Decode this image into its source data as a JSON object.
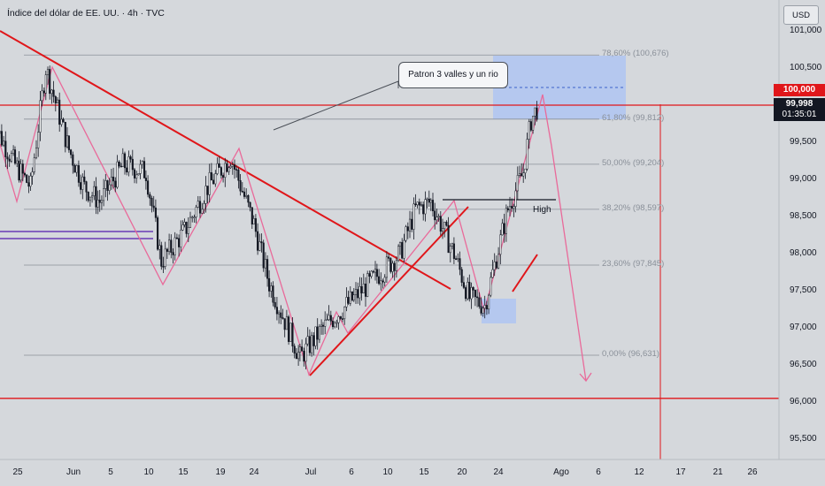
{
  "header": {
    "title": "Índice del dólar de EE. UU. · 4h · TVC",
    "currency_button": "USD"
  },
  "colors": {
    "background": "#d5d8dc",
    "trendline": "#e0161a",
    "zigzag": "#e96a9a",
    "candle": "#131722",
    "channel": "#6a3ab5",
    "fib_box": "#a9c3f5",
    "price_tag_red": "#e0161a",
    "price_tag_dark": "#131722"
  },
  "price_axis": {
    "labels": [
      "101,000",
      "100,500",
      "100,000",
      "99,998",
      "01:35:01",
      "99,500",
      "99,000",
      "98,500",
      "98,000",
      "97,500",
      "97,000",
      "96,500",
      "96,000",
      "95,500"
    ],
    "tick_values": [
      101.0,
      100.5,
      99.5,
      99.0,
      98.5,
      98.0,
      97.5,
      97.0,
      96.5,
      96.0,
      95.5
    ],
    "tick_labels": [
      "101,000",
      "100,500",
      "99,500",
      "99,000",
      "98,500",
      "98,000",
      "97,500",
      "97,000",
      "96,500",
      "96,000",
      "95,500"
    ],
    "level_tag": "100,000",
    "current_price": "99,998",
    "countdown": "01:35:01"
  },
  "time_axis": {
    "labels": [
      "25",
      "Jun",
      "5",
      "10",
      "15",
      "19",
      "24",
      "Jul",
      "6",
      "10",
      "15",
      "20",
      "24",
      "Ago",
      "6",
      "12",
      "17",
      "21",
      "26"
    ]
  },
  "fibonacci": {
    "levels": [
      {
        "ratio": 0.786,
        "label": "78,60% (100,676)",
        "price": 100.676
      },
      {
        "ratio": 0.618,
        "label": "61,80% (99,812)",
        "price": 99.812
      },
      {
        "ratio": 0.5,
        "label": "50,00% (99,204)",
        "price": 99.204
      },
      {
        "ratio": 0.382,
        "label": "38,20% (98,597)",
        "price": 98.597
      },
      {
        "ratio": 0.236,
        "label": "23,60% (97,845)",
        "price": 97.845
      },
      {
        "ratio": 0.0,
        "label": "0,00% (96,631)",
        "price": 96.631
      }
    ]
  },
  "annotations": {
    "callout_text": "Patron 3 valles y un rio",
    "high_label": "High"
  },
  "chart_data": {
    "type": "candlestick",
    "title": "Índice del dólar de EE. UU. · 4h · TVC",
    "ylim": [
      95.2,
      101.1
    ],
    "y_axis_side": "right",
    "grid": false,
    "horizontal_levels": [
      100.0,
      96.05
    ],
    "price_path": [
      {
        "date": "May 22",
        "price": 99.8
      },
      {
        "date": "May 25",
        "price": 99.2
      },
      {
        "date": "May 27",
        "price": 98.9
      },
      {
        "date": "May 29",
        "price": 100.5
      },
      {
        "date": "Jun 1",
        "price": 99.4
      },
      {
        "date": "Jun 3",
        "price": 98.9
      },
      {
        "date": "Jun 5",
        "price": 98.7
      },
      {
        "date": "Jun 8",
        "price": 99.2
      },
      {
        "date": "Jun 11",
        "price": 99.1
      },
      {
        "date": "Jun 13",
        "price": 97.9
      },
      {
        "date": "Jun 16",
        "price": 98.3
      },
      {
        "date": "Jun 19",
        "price": 98.9
      },
      {
        "date": "Jun 22",
        "price": 99.3
      },
      {
        "date": "Jun 25",
        "price": 98.4
      },
      {
        "date": "Jun 27",
        "price": 97.6
      },
      {
        "date": "Jul 1",
        "price": 96.6
      },
      {
        "date": "Jul 4",
        "price": 97.0
      },
      {
        "date": "Jul 8",
        "price": 97.4
      },
      {
        "date": "Jul 11",
        "price": 97.7
      },
      {
        "date": "Jul 14",
        "price": 98.0
      },
      {
        "date": "Jul 16",
        "price": 98.6
      },
      {
        "date": "Jul 18",
        "price": 98.7
      },
      {
        "date": "Jul 21",
        "price": 98.0
      },
      {
        "date": "Jul 23",
        "price": 97.4
      },
      {
        "date": "Jul 25",
        "price": 97.3
      },
      {
        "date": "Jul 28",
        "price": 98.6
      },
      {
        "date": "Jul 30",
        "price": 99.1
      },
      {
        "date": "Jul 31",
        "price": 99.8
      },
      {
        "date": "Aug 1",
        "price": 100.0
      }
    ]
  }
}
